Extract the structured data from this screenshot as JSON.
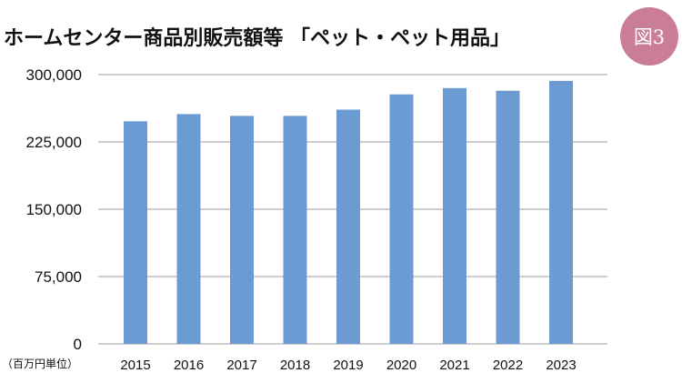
{
  "header": {
    "title": "ホームセンター商品別販売額等 「ペット・ペット用品」",
    "figure_badge": "図3"
  },
  "chart_data": {
    "type": "bar",
    "title": "ホームセンター商品別販売額等 「ペット・ペット用品」",
    "unit_label": "（百万円単位）",
    "categories": [
      "2015",
      "2016",
      "2017",
      "2018",
      "2019",
      "2020",
      "2021",
      "2022",
      "2023"
    ],
    "values": [
      248000,
      256000,
      254000,
      254000,
      261000,
      278000,
      285000,
      282000,
      293000
    ],
    "ylim": [
      0,
      300000
    ],
    "yticks": [
      0,
      75000,
      150000,
      225000,
      300000
    ],
    "ytick_labels": [
      "0",
      "75,000",
      "150,000",
      "225,000",
      "300,000"
    ],
    "grid": true,
    "bar_color": "#6b9bd2",
    "grid_color": "#bdbdbd",
    "accent_color": "#c97d96"
  }
}
